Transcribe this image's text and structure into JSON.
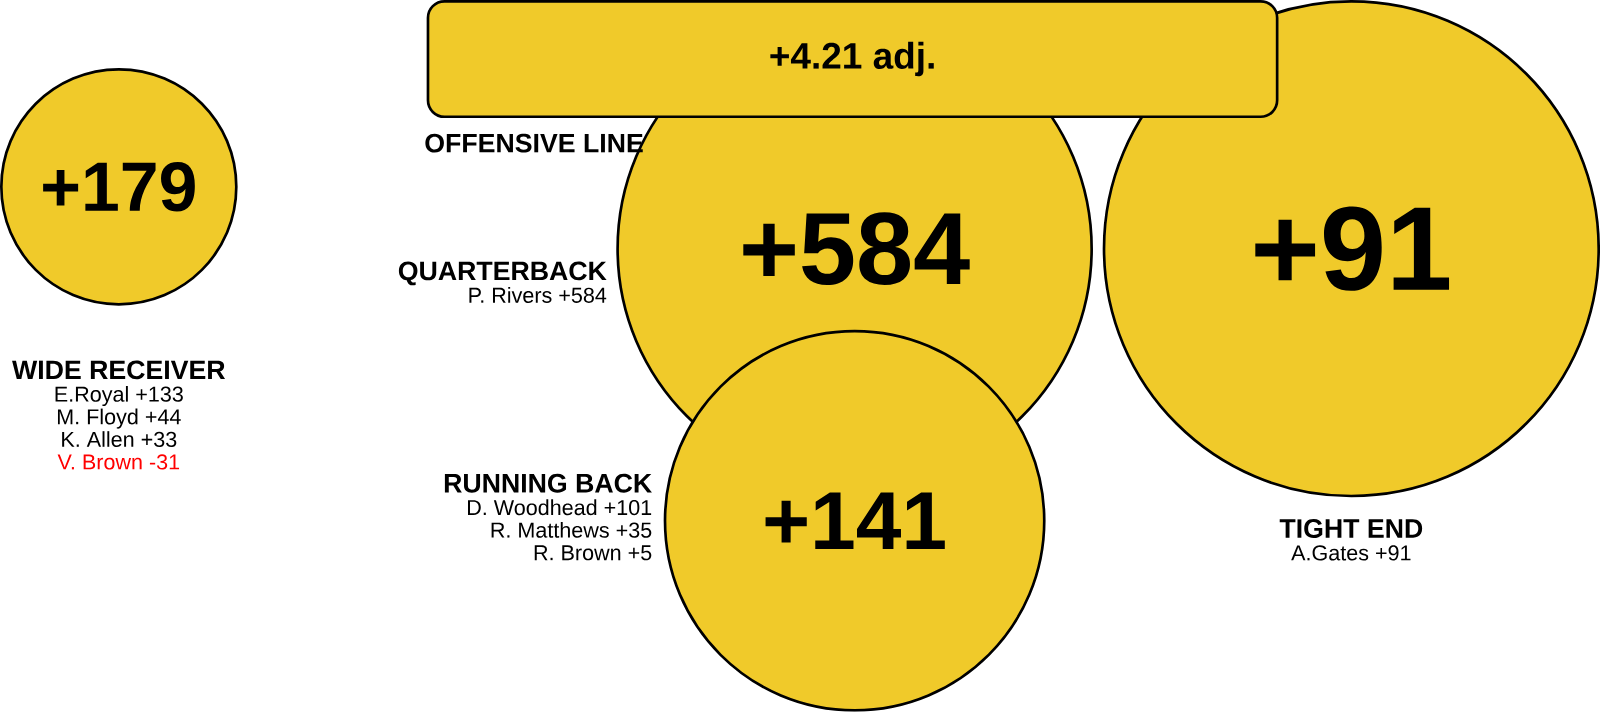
{
  "chart_data": {
    "type": "other",
    "color": "#f0ca2a",
    "categories": [
      "WIDE RECEIVER",
      "QUARTERBACK",
      "RUNNING BACK",
      "TIGHT END",
      "OFFENSIVE LINE"
    ],
    "values": [
      179,
      584,
      141,
      91,
      4.21
    ],
    "value_labels": [
      "+179",
      "+584",
      "+141",
      "+91",
      "+4.21"
    ],
    "annotations": [
      "adj.",
      "E.Royal +133",
      "M. Floyd +44",
      "K. Allen +33",
      "V. Brown -31",
      "P. Rivers +584",
      "D. Woodhead +101",
      "R. Matthews +35",
      "R. Brown +5",
      "A.Gates +91"
    ]
  }
}
